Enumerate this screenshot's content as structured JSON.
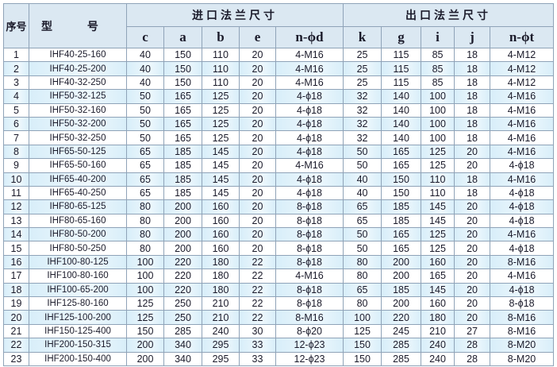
{
  "header": {
    "seq": "序号",
    "model": "型 号",
    "inlet_group": "进口法兰尺寸",
    "outlet_group": "出口法兰尺寸",
    "inlet_columns": [
      "c",
      "a",
      "b",
      "e",
      "n-ϕd"
    ],
    "outlet_columns": [
      "k",
      "g",
      "i",
      "j",
      "n-ϕt"
    ]
  },
  "rows": [
    [
      "1",
      "IHF40-25-160",
      "40",
      "150",
      "110",
      "20",
      "4-M16",
      "25",
      "115",
      "85",
      "18",
      "4-M12"
    ],
    [
      "2",
      "IHF40-25-200",
      "40",
      "150",
      "110",
      "20",
      "4-M16",
      "25",
      "115",
      "85",
      "18",
      "4-M12"
    ],
    [
      "3",
      "IHF40-32-250",
      "40",
      "150",
      "110",
      "20",
      "4-M16",
      "25",
      "115",
      "85",
      "18",
      "4-M12"
    ],
    [
      "4",
      "IHF50-32-125",
      "50",
      "165",
      "125",
      "20",
      "4-ϕ18",
      "32",
      "140",
      "100",
      "18",
      "4-M16"
    ],
    [
      "5",
      "IHF50-32-160",
      "50",
      "165",
      "125",
      "20",
      "4-ϕ18",
      "32",
      "140",
      "100",
      "18",
      "4-M16"
    ],
    [
      "6",
      "IHF50-32-200",
      "50",
      "165",
      "125",
      "20",
      "4-ϕ18",
      "32",
      "140",
      "100",
      "18",
      "4-M16"
    ],
    [
      "7",
      "IHF50-32-250",
      "50",
      "165",
      "125",
      "20",
      "4-ϕ18",
      "32",
      "140",
      "100",
      "18",
      "4-M16"
    ],
    [
      "8",
      "IHF65-50-125",
      "65",
      "185",
      "145",
      "20",
      "4-ϕ18",
      "50",
      "165",
      "125",
      "20",
      "4-M16"
    ],
    [
      "9",
      "IHF65-50-160",
      "65",
      "185",
      "145",
      "20",
      "4-M16",
      "50",
      "165",
      "125",
      "20",
      "4-ϕ18"
    ],
    [
      "10",
      "IHF65-40-200",
      "65",
      "185",
      "145",
      "20",
      "4-ϕ18",
      "40",
      "150",
      "110",
      "18",
      "4-M16"
    ],
    [
      "11",
      "IHF65-40-250",
      "65",
      "185",
      "145",
      "20",
      "4-ϕ18",
      "40",
      "150",
      "110",
      "18",
      "4-ϕ18"
    ],
    [
      "12",
      "IHF80-65-125",
      "80",
      "200",
      "160",
      "20",
      "8-ϕ18",
      "65",
      "185",
      "145",
      "20",
      "4-ϕ18"
    ],
    [
      "13",
      "IHF80-65-160",
      "80",
      "200",
      "160",
      "20",
      "8-ϕ18",
      "65",
      "185",
      "145",
      "20",
      "4-ϕ18"
    ],
    [
      "14",
      "IHF80-50-200",
      "80",
      "200",
      "160",
      "20",
      "8-ϕ18",
      "50",
      "165",
      "125",
      "20",
      "4-M16"
    ],
    [
      "15",
      "IHF80-50-250",
      "80",
      "200",
      "160",
      "20",
      "8-ϕ18",
      "50",
      "165",
      "125",
      "20",
      "4-ϕ18"
    ],
    [
      "16",
      "IHF100-80-125",
      "100",
      "220",
      "180",
      "22",
      "8-ϕ18",
      "80",
      "200",
      "160",
      "20",
      "8-M16"
    ],
    [
      "17",
      "IHF100-80-160",
      "100",
      "220",
      "180",
      "22",
      "4-M16",
      "80",
      "200",
      "165",
      "20",
      "4-M16"
    ],
    [
      "18",
      "IHF100-65-200",
      "100",
      "220",
      "180",
      "22",
      "8-ϕ18",
      "65",
      "185",
      "145",
      "20",
      "4-ϕ18"
    ],
    [
      "19",
      "IHF125-80-160",
      "125",
      "250",
      "210",
      "22",
      "8-ϕ18",
      "80",
      "200",
      "160",
      "20",
      "8-ϕ18"
    ],
    [
      "20",
      "IHF125-100-200",
      "125",
      "250",
      "210",
      "22",
      "8-M16",
      "100",
      "220",
      "180",
      "20",
      "8-M16"
    ],
    [
      "21",
      "IHF150-125-400",
      "150",
      "285",
      "240",
      "30",
      "8-ϕ20",
      "125",
      "245",
      "210",
      "27",
      "8-M16"
    ],
    [
      "22",
      "IHF200-150-315",
      "200",
      "340",
      "295",
      "33",
      "12-ϕ23",
      "150",
      "285",
      "240",
      "28",
      "8-M20"
    ],
    [
      "23",
      "IHF200-150-400",
      "200",
      "340",
      "295",
      "33",
      "12-ϕ23",
      "150",
      "285",
      "240",
      "28",
      "8-M20"
    ]
  ]
}
